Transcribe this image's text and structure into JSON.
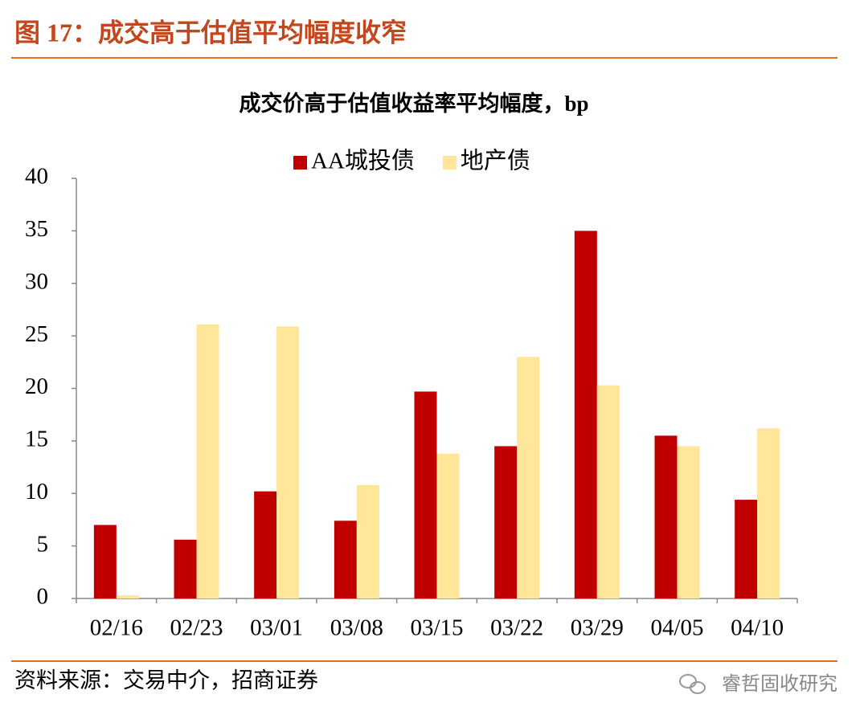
{
  "header": {
    "title": "图 17：成交高于估值平均幅度收窄"
  },
  "chart_data": {
    "type": "bar",
    "title": "成交价高于估值收益率平均幅度，bp",
    "categories": [
      "02/16",
      "02/23",
      "03/01",
      "03/08",
      "03/15",
      "03/22",
      "03/29",
      "04/05",
      "04/10"
    ],
    "series": [
      {
        "name": "AA城投债",
        "color": "#c00000",
        "values": [
          7.0,
          5.6,
          10.2,
          7.4,
          19.7,
          14.5,
          35.0,
          15.5,
          9.4
        ]
      },
      {
        "name": "地产债",
        "color": "#ffe699",
        "values": [
          0.3,
          26.1,
          25.9,
          10.8,
          13.8,
          23.0,
          20.3,
          14.5,
          16.2
        ]
      }
    ],
    "ylim": [
      0,
      40
    ],
    "yticks": [
      0,
      5,
      10,
      15,
      20,
      25,
      30,
      35,
      40
    ],
    "legend": "top"
  },
  "footer": {
    "source": "资料来源：交易中介，招商证券",
    "watermark": "睿哲固收研究"
  }
}
